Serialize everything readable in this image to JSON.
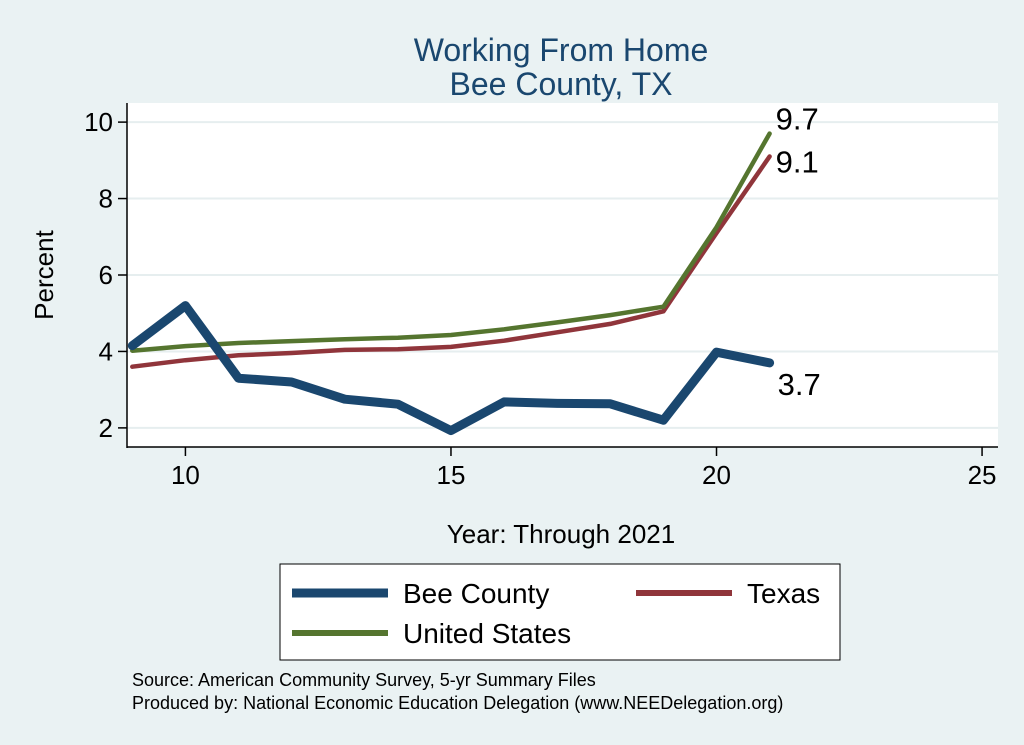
{
  "colors": {
    "background": "#eaf2f3",
    "plot_background": "#ffffff",
    "grid": "#e6eeef",
    "title": "#1a476f",
    "bee_county": "#1a476f",
    "texas": "#90353b",
    "united_states": "#55752f"
  },
  "notes": {
    "source": "Source: American Community Survey, 5-yr Summary Files",
    "produced_by": "Produced by: National Economic Education Delegation (www.NEEDelegation.org)"
  },
  "chart_data": {
    "type": "line",
    "title": "Working From Home",
    "subtitle": "Bee County, TX",
    "xlabel": "Year: Through 2021",
    "ylabel": "Percent",
    "xlim": [
      8.9,
      25.3
    ],
    "ylim": [
      1.5,
      10.5
    ],
    "xticks": [
      10,
      15,
      20,
      25
    ],
    "yticks": [
      2,
      4,
      6,
      8,
      10
    ],
    "grid": true,
    "legend_position": "bottom",
    "x": [
      9,
      10,
      11,
      12,
      13,
      14,
      15,
      16,
      17,
      18,
      19,
      20,
      21
    ],
    "series": [
      {
        "name": "Bee County",
        "color": "#1a476f",
        "width": "thick",
        "values": [
          4.15,
          5.2,
          3.3,
          3.2,
          2.75,
          2.62,
          1.93,
          2.68,
          2.64,
          2.63,
          2.2,
          3.98,
          3.7
        ],
        "end_label": "3.7"
      },
      {
        "name": "Texas",
        "color": "#90353b",
        "width": "medium",
        "values": [
          3.6,
          3.77,
          3.9,
          3.96,
          4.04,
          4.06,
          4.12,
          4.28,
          4.5,
          4.72,
          5.05,
          7.1,
          9.1
        ],
        "end_label": "9.1"
      },
      {
        "name": "United States",
        "color": "#55752f",
        "width": "medium",
        "values": [
          4.02,
          4.14,
          4.22,
          4.27,
          4.32,
          4.36,
          4.43,
          4.58,
          4.76,
          4.95,
          5.17,
          7.25,
          9.7
        ],
        "end_label": "9.7"
      }
    ]
  }
}
